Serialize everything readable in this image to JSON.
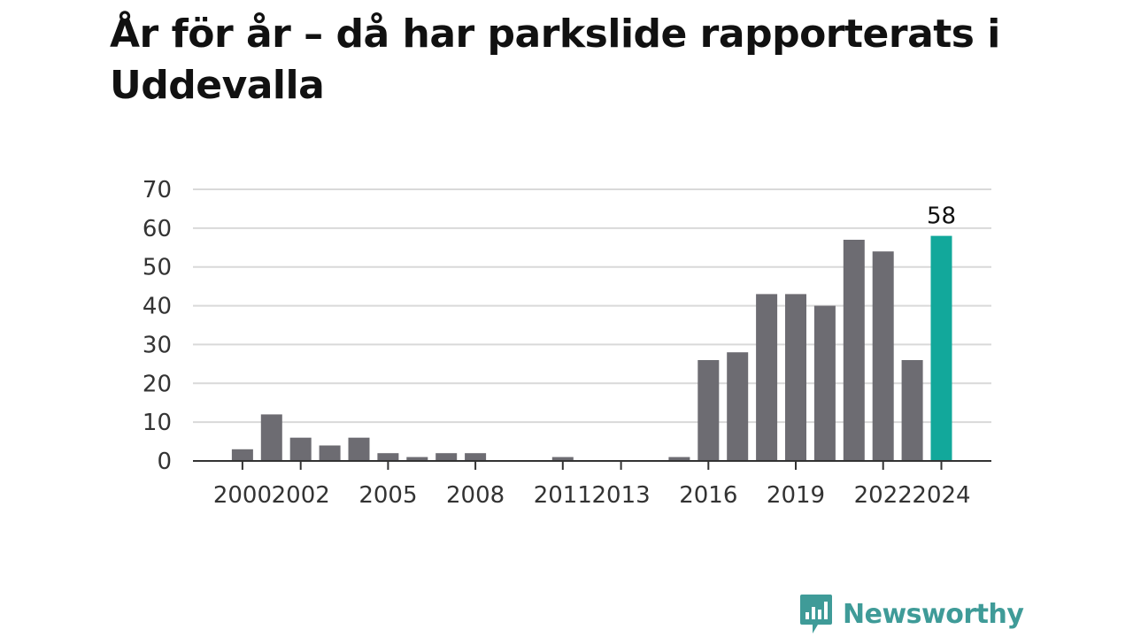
{
  "title": "År för år – då har parkslide rapporterats i Uddevalla",
  "brand": {
    "name": "Newsworthy",
    "logo_icon": "bar-chart-speech-bubble-icon",
    "color": "#3f9b98"
  },
  "colors": {
    "bar": "#6d6c72",
    "highlight": "#12a89b",
    "grid": "#d9d9d9",
    "axis": "#333333"
  },
  "chart_data": {
    "type": "bar",
    "title": "År för år – då har parkslide rapporterats i Uddevalla",
    "xlabel": "",
    "ylabel": "",
    "ylim": [
      0,
      70
    ],
    "yticks": [
      0,
      10,
      20,
      30,
      40,
      50,
      60,
      70
    ],
    "xticks": [
      2000,
      2002,
      2005,
      2008,
      2011,
      2013,
      2016,
      2019,
      2022,
      2024
    ],
    "grid": true,
    "categories": [
      1999,
      2000,
      2001,
      2002,
      2003,
      2004,
      2005,
      2006,
      2007,
      2008,
      2009,
      2010,
      2011,
      2012,
      2013,
      2014,
      2015,
      2016,
      2017,
      2018,
      2019,
      2020,
      2021,
      2022,
      2023,
      2024
    ],
    "values": [
      0,
      3,
      12,
      6,
      4,
      6,
      2,
      1,
      2,
      2,
      0,
      0,
      1,
      0,
      0,
      0,
      1,
      26,
      28,
      43,
      43,
      40,
      57,
      54,
      26,
      58
    ],
    "highlight": {
      "category": 2024,
      "value": 58,
      "label": "58"
    }
  }
}
